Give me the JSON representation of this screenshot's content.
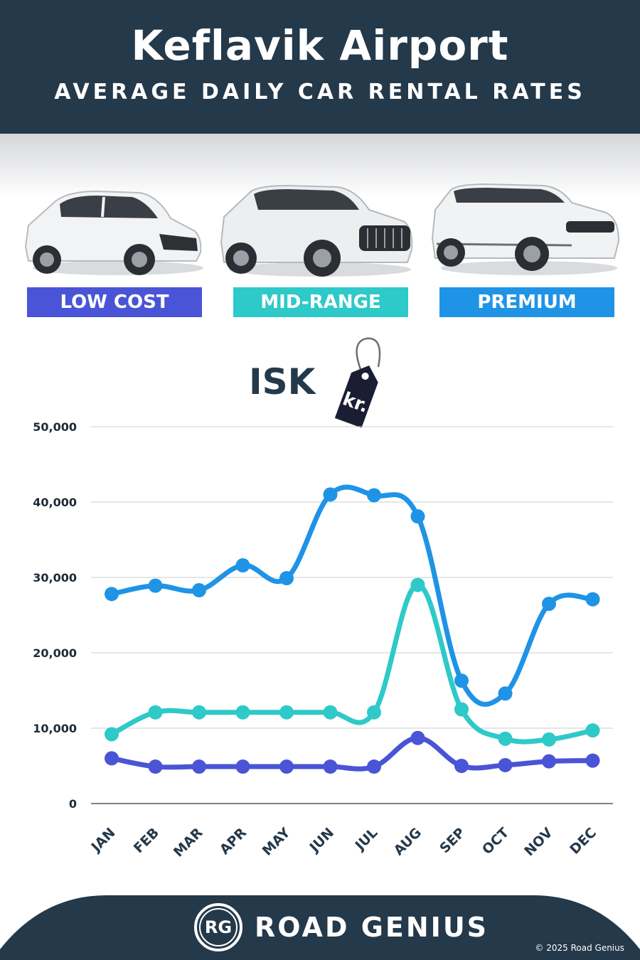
{
  "header": {
    "title": "Keflavik Airport",
    "subtitle": "AVERAGE DAILY CAR RENTAL RATES"
  },
  "categories": [
    {
      "label": "LOW COST",
      "color": "#4a54d6",
      "icon": "hatchback-car-icon"
    },
    {
      "label": "MID-RANGE",
      "color": "#2ec9c9",
      "icon": "suv-car-icon"
    },
    {
      "label": "PREMIUM",
      "color": "#1f93e6",
      "icon": "luxury-suv-car-icon"
    }
  ],
  "currency": {
    "label": "ISK",
    "tag_text": "kr.",
    "icon": "price-tag-icon"
  },
  "chart_data": {
    "type": "line",
    "x": [
      "JAN",
      "FEB",
      "MAR",
      "APR",
      "MAY",
      "JUN",
      "JUL",
      "AUG",
      "SEP",
      "OCT",
      "NOV",
      "DEC"
    ],
    "ylim": [
      0,
      50000
    ],
    "yticks": [
      "0",
      "10,000",
      "20,000",
      "30,000",
      "40,000",
      "50,000"
    ],
    "grid": true,
    "series": [
      {
        "name": "PREMIUM",
        "color": "#1f93e6",
        "values": [
          27800,
          28900,
          28300,
          31600,
          29900,
          41000,
          40900,
          38100,
          16300,
          14600,
          26500,
          27100
        ]
      },
      {
        "name": "MID-RANGE",
        "color": "#2ec9c9",
        "values": [
          9200,
          12100,
          12100,
          12100,
          12100,
          12100,
          12100,
          29000,
          12500,
          8600,
          8500,
          9700
        ]
      },
      {
        "name": "LOW COST",
        "color": "#4a54d6",
        "values": [
          6000,
          4900,
          4900,
          4900,
          4900,
          4900,
          4900,
          8700,
          5000,
          5100,
          5600,
          5700
        ]
      }
    ]
  },
  "footer": {
    "logo_text": "RG",
    "brand": "ROAD GENIUS",
    "copyright": "© 2025 Road Genius"
  }
}
